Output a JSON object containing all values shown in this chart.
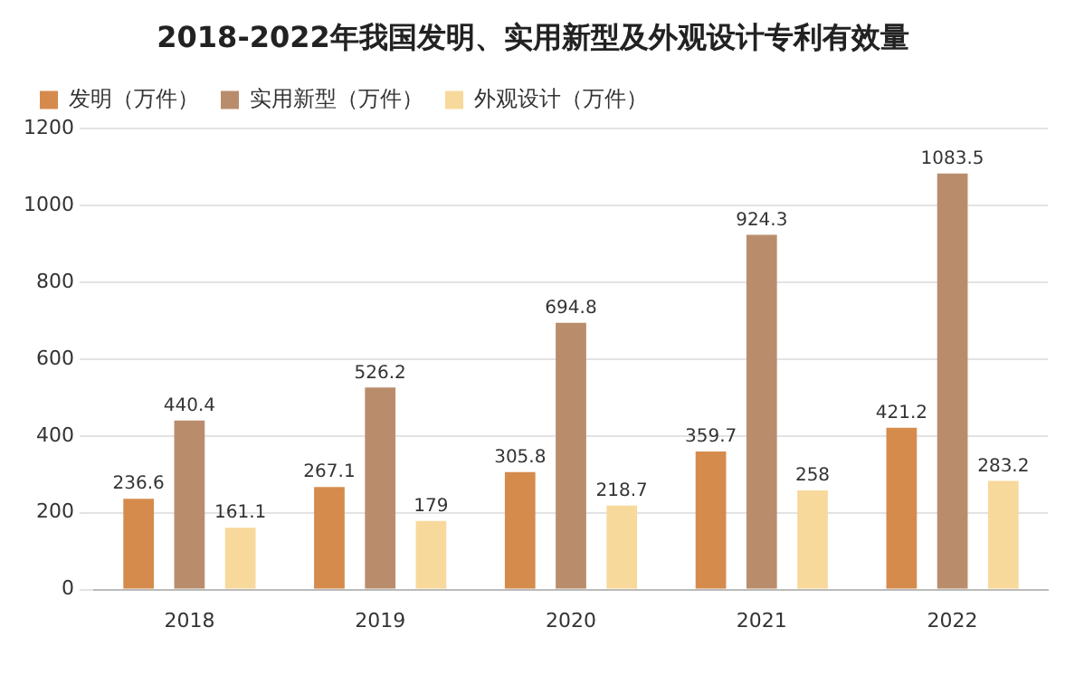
{
  "chart_data": {
    "type": "bar",
    "title": "2018-2022年我国发明、实用新型及外观设计专利有效量",
    "categories": [
      "2018",
      "2019",
      "2020",
      "2021",
      "2022"
    ],
    "series": [
      {
        "name": "发明（万件）",
        "color": "#d58b4c",
        "values": [
          236.6,
          267.1,
          305.8,
          359.7,
          421.2
        ]
      },
      {
        "name": "实用新型（万件）",
        "color": "#b98d6c",
        "values": [
          440.4,
          526.2,
          694.8,
          924.3,
          1083.5
        ]
      },
      {
        "name": "外观设计（万件）",
        "color": "#f8d99c",
        "values": [
          161.1,
          179,
          218.7,
          258,
          283.2
        ]
      }
    ],
    "ylim": [
      0,
      1200
    ],
    "yticks": [
      0,
      200,
      400,
      600,
      800,
      1000,
      1200
    ],
    "grid": "y",
    "legend": "top",
    "data_labels": true
  }
}
